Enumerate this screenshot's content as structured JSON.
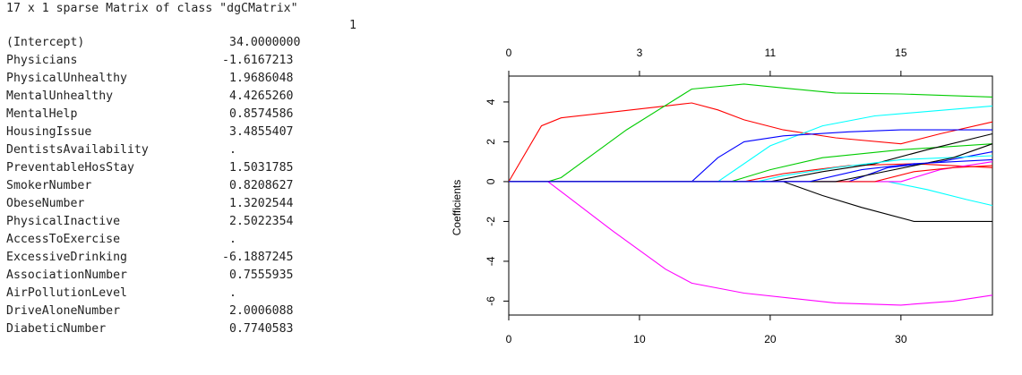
{
  "console": {
    "header": "17 x 1 sparse Matrix of class \"dgCMatrix\"",
    "column_label": "1",
    "rows": [
      {
        "name": "(Intercept)",
        "value": "34.0000000"
      },
      {
        "name": "Physicians",
        "value": "-1.6167213"
      },
      {
        "name": "PhysicalUnhealthy",
        "value": "1.9686048"
      },
      {
        "name": "MentalUnhealthy",
        "value": "4.4265260"
      },
      {
        "name": "MentalHelp",
        "value": "0.8574586"
      },
      {
        "name": "HousingIssue",
        "value": "3.4855407"
      },
      {
        "name": "DentistsAvailability",
        "value": "."
      },
      {
        "name": "PreventableHosStay",
        "value": "1.5031785"
      },
      {
        "name": "SmokerNumber",
        "value": "0.8208627"
      },
      {
        "name": "ObeseNumber",
        "value": "1.3202544"
      },
      {
        "name": "PhysicalInactive",
        "value": "2.5022354"
      },
      {
        "name": "AccessToExercise",
        "value": "."
      },
      {
        "name": "ExcessiveDrinking",
        "value": "-6.1887245"
      },
      {
        "name": "AssociationNumber",
        "value": "0.7555935"
      },
      {
        "name": "AirPollutionLevel",
        "value": "."
      },
      {
        "name": "DriveAloneNumber",
        "value": "2.0006088"
      },
      {
        "name": "DiabeticNumber",
        "value": "0.7740583"
      }
    ]
  },
  "chart_data": {
    "type": "line",
    "title": "",
    "xlabel": "",
    "ylabel": "Coefficients",
    "xlim": [
      0,
      37
    ],
    "ylim": [
      -6.7,
      5.3
    ],
    "x_ticks": [
      0,
      10,
      20,
      30
    ],
    "y_ticks": [
      -6,
      -4,
      -2,
      0,
      2,
      4
    ],
    "top_axis": {
      "tick_positions": [
        0,
        10,
        20,
        30
      ],
      "tick_labels": [
        "0",
        "3",
        "11",
        "15"
      ]
    },
    "series": [
      {
        "color": "#ff0000",
        "points": [
          [
            0,
            0
          ],
          [
            2.5,
            2.8
          ],
          [
            4,
            3.2
          ],
          [
            8,
            3.5
          ],
          [
            12,
            3.8
          ],
          [
            14,
            3.95
          ],
          [
            16,
            3.6
          ],
          [
            18,
            3.1
          ],
          [
            21,
            2.6
          ],
          [
            25,
            2.2
          ],
          [
            30,
            1.9
          ],
          [
            33,
            2.4
          ],
          [
            37,
            3.0
          ]
        ]
      },
      {
        "color": "#00cc00",
        "points": [
          [
            0,
            0
          ],
          [
            3,
            0
          ],
          [
            4,
            0.2
          ],
          [
            9,
            2.6
          ],
          [
            14,
            4.65
          ],
          [
            18,
            4.9
          ],
          [
            21,
            4.7
          ],
          [
            25,
            4.45
          ],
          [
            30,
            4.4
          ],
          [
            37,
            4.25
          ]
        ]
      },
      {
        "color": "#ff00ff",
        "points": [
          [
            0,
            0
          ],
          [
            3,
            0
          ],
          [
            8,
            -2.5
          ],
          [
            12,
            -4.4
          ],
          [
            14,
            -5.1
          ],
          [
            18,
            -5.6
          ],
          [
            25,
            -6.1
          ],
          [
            30,
            -6.2
          ],
          [
            34,
            -6.0
          ],
          [
            37,
            -5.7
          ]
        ]
      },
      {
        "color": "#00ffff",
        "points": [
          [
            0,
            0
          ],
          [
            16,
            0
          ],
          [
            20,
            1.8
          ],
          [
            24,
            2.8
          ],
          [
            28,
            3.3
          ],
          [
            37,
            3.8
          ]
        ]
      },
      {
        "color": "#0000ff",
        "points": [
          [
            0,
            0
          ],
          [
            14,
            0
          ],
          [
            16,
            1.2
          ],
          [
            18,
            2.0
          ],
          [
            21,
            2.3
          ],
          [
            26,
            2.5
          ],
          [
            30,
            2.6
          ],
          [
            37,
            2.6
          ]
        ]
      },
      {
        "color": "#000000",
        "points": [
          [
            0,
            0
          ],
          [
            21,
            0
          ],
          [
            24,
            -0.7
          ],
          [
            27,
            -1.3
          ],
          [
            31,
            -2.0
          ],
          [
            37,
            -2.0
          ]
        ]
      },
      {
        "color": "#00cc00",
        "points": [
          [
            0,
            0
          ],
          [
            17,
            0
          ],
          [
            18,
            0.2
          ],
          [
            20,
            0.6
          ],
          [
            24,
            1.2
          ],
          [
            30,
            1.6
          ],
          [
            37,
            1.9
          ]
        ]
      },
      {
        "color": "#ff0000",
        "points": [
          [
            0,
            0
          ],
          [
            18,
            0
          ],
          [
            21,
            0.4
          ],
          [
            26,
            0.8
          ],
          [
            31,
            0.9
          ],
          [
            37,
            0.7
          ]
        ]
      },
      {
        "color": "#00ffff",
        "points": [
          [
            0,
            0
          ],
          [
            29,
            0
          ],
          [
            32,
            -0.4
          ],
          [
            35,
            -0.9
          ],
          [
            37,
            -1.2
          ]
        ]
      },
      {
        "color": "#ff00ff",
        "points": [
          [
            0,
            0
          ],
          [
            30,
            0
          ],
          [
            33,
            0.6
          ],
          [
            37,
            1.0
          ]
        ]
      },
      {
        "color": "#0000ff",
        "points": [
          [
            0,
            0
          ],
          [
            26,
            0
          ],
          [
            29,
            0.7
          ],
          [
            33,
            1.0
          ],
          [
            37,
            1.5
          ]
        ]
      },
      {
        "color": "#000000",
        "points": [
          [
            0,
            0
          ],
          [
            20,
            0
          ],
          [
            24,
            0.5
          ],
          [
            28,
            0.9
          ],
          [
            32,
            1.6
          ],
          [
            37,
            2.4
          ]
        ]
      },
      {
        "color": "#00ffff",
        "points": [
          [
            0,
            0
          ],
          [
            19,
            0
          ],
          [
            21,
            0.3
          ],
          [
            25,
            0.7
          ],
          [
            30,
            1.1
          ],
          [
            37,
            1.3
          ]
        ]
      },
      {
        "color": "#ff0000",
        "points": [
          [
            0,
            0
          ],
          [
            28,
            0
          ],
          [
            31,
            0.5
          ],
          [
            34,
            0.7
          ],
          [
            37,
            0.8
          ]
        ]
      },
      {
        "color": "#000000",
        "points": [
          [
            0,
            0
          ],
          [
            25,
            0
          ],
          [
            28,
            0.4
          ],
          [
            31,
            0.8
          ],
          [
            34,
            1.2
          ],
          [
            37,
            1.9
          ]
        ]
      },
      {
        "color": "#0000ff",
        "points": [
          [
            0,
            0
          ],
          [
            23,
            0
          ],
          [
            27,
            0.6
          ],
          [
            31,
            0.9
          ],
          [
            37,
            1.1
          ]
        ]
      }
    ]
  }
}
